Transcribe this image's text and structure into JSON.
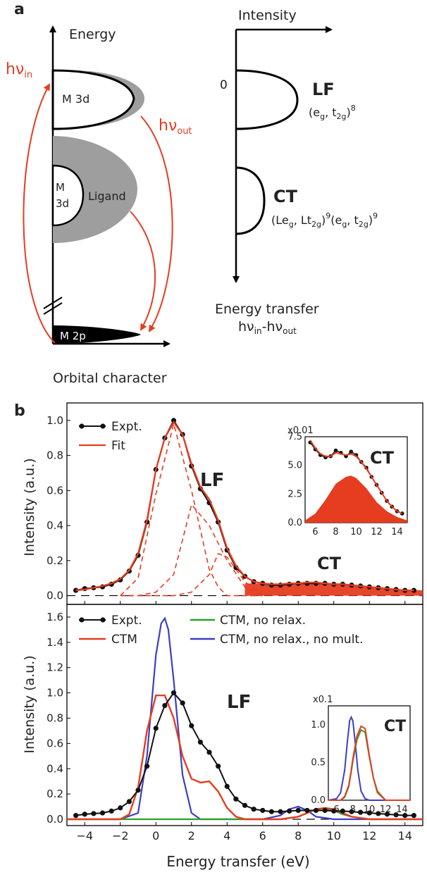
{
  "panel_a": {
    "label": "a",
    "energy_axis": "Energy",
    "orbital_axis": "Orbital character",
    "intensity_axis": "Intensity",
    "zero": "0",
    "m3d_top": "M 3d",
    "m3d_mid_1": "M",
    "m3d_mid_2": "3d",
    "ligand": "Ligand",
    "m2p": "M 2p",
    "hv_in_main": "hν",
    "hv_in_sub": "in",
    "hv_out_main": "hν",
    "hv_out_sub": "out",
    "lf": "LF",
    "lf_config": "(eg, t2g)8",
    "ct": "CT",
    "ct_config": "(Leg, Lt2g)9(eg, t2g)9",
    "transfer_title": "Energy transfer",
    "transfer_formula": "hνin-hνout",
    "colors": {
      "arrow": "#e63c20",
      "shade": "#9e9e9e",
      "core": "#000000"
    }
  },
  "chart_data": [
    {
      "type": "line",
      "panel": "b",
      "panel_label": "b",
      "xlabel": "Energy transfer (eV)",
      "ylabel": "Intensity (a.u.)",
      "xlim": [
        -5,
        15
      ],
      "ylim": [
        -0.05,
        1.1
      ],
      "yticks": [
        "0.0",
        "0.2",
        "0.4",
        "0.6",
        "0.8",
        "1.0"
      ],
      "annotations": [
        "LF",
        "CT"
      ],
      "legend": {
        "position": "top-left"
      },
      "series": [
        {
          "name": "Expt.",
          "color": "#111111",
          "marker": "circle",
          "x": [
            -4.5,
            -4,
            -3.5,
            -3,
            -2.5,
            -2,
            -1.5,
            -1,
            -0.5,
            0,
            0.5,
            1,
            1.5,
            2,
            2.5,
            3,
            3.5,
            4,
            4.5,
            5,
            5.5,
            6,
            6.5,
            7,
            7.5,
            8,
            8.5,
            9,
            9.5,
            10,
            10.5,
            11,
            11.5,
            12,
            12.5,
            13,
            13.5,
            14,
            14.5
          ],
          "y": [
            0.03,
            0.04,
            0.045,
            0.05,
            0.065,
            0.09,
            0.14,
            0.23,
            0.42,
            0.72,
            0.9,
            1.0,
            0.92,
            0.74,
            0.61,
            0.53,
            0.42,
            0.26,
            0.16,
            0.11,
            0.08,
            0.07,
            0.06,
            0.06,
            0.065,
            0.07,
            0.07,
            0.07,
            0.07,
            0.065,
            0.065,
            0.06,
            0.055,
            0.05,
            0.045,
            0.04,
            0.035,
            0.03,
            0.03
          ]
        },
        {
          "name": "Fit",
          "color": "#e63c20",
          "x": [
            -4.5,
            -4,
            -3.5,
            -3,
            -2.5,
            -2,
            -1.5,
            -1,
            -0.5,
            0,
            0.5,
            1,
            1.5,
            2,
            2.5,
            3,
            3.5,
            4,
            4.5,
            5,
            5.5,
            6,
            6.5,
            7,
            7.5,
            8,
            8.5,
            9,
            9.5,
            10,
            10.5,
            11,
            11.5,
            12,
            12.5,
            13,
            13.5,
            14,
            14.5
          ],
          "y": [
            0.03,
            0.035,
            0.045,
            0.055,
            0.07,
            0.095,
            0.145,
            0.24,
            0.43,
            0.72,
            0.9,
            0.99,
            0.92,
            0.75,
            0.62,
            0.55,
            0.43,
            0.27,
            0.17,
            0.11,
            0.08,
            0.07,
            0.065,
            0.065,
            0.07,
            0.07,
            0.075,
            0.075,
            0.07,
            0.065,
            0.065,
            0.06,
            0.055,
            0.05,
            0.045,
            0.04,
            0.035,
            0.03,
            0.03
          ]
        }
      ],
      "components": {
        "style": "dashed",
        "x": [
          -2,
          -1,
          0,
          1,
          2,
          3,
          3.5,
          4,
          5,
          6
        ],
        "peak_a": [
          0.0,
          0.1,
          0.58,
          0.98,
          0.6,
          0.15,
          0.05,
          0.0,
          0.0,
          0.0
        ],
        "peak_b": [
          0.0,
          0.0,
          0.02,
          0.12,
          0.52,
          0.4,
          0.3,
          0.2,
          0.05,
          0.0
        ],
        "peak_c": [
          0.0,
          0.0,
          0.0,
          0.0,
          0.02,
          0.12,
          0.24,
          0.22,
          0.08,
          0.0
        ]
      },
      "inset": {
        "scale_label": "x0.01",
        "title": "CT",
        "xlim": [
          5,
          15
        ],
        "ylim": [
          0,
          7.5
        ],
        "xticks": [
          "6",
          "8",
          "10",
          "12",
          "14"
        ],
        "yticks": [
          "0.0",
          "2.5",
          "5.0",
          "7.5"
        ],
        "expt_x": [
          5.5,
          6,
          6.5,
          7,
          7.5,
          8,
          8.5,
          9,
          9.5,
          10,
          10.5,
          11,
          11.5,
          12,
          12.5,
          13,
          13.5,
          14,
          14.5
        ],
        "expt_y": [
          7.0,
          6.4,
          5.9,
          5.7,
          5.8,
          6.3,
          6.1,
          5.8,
          6.2,
          5.9,
          5.3,
          4.8,
          4.0,
          3.3,
          2.6,
          1.9,
          1.4,
          1.0,
          0.8
        ],
        "fit_y": [
          7.2,
          6.5,
          6.0,
          5.8,
          5.8,
          6.1,
          6.0,
          5.9,
          6.0,
          5.8,
          5.3,
          4.7,
          4.0,
          3.3,
          2.6,
          1.9,
          1.4,
          1.0,
          0.8
        ],
        "filled_x": [
          5,
          6,
          7,
          8,
          9,
          9.5,
          10,
          11,
          12,
          13,
          14,
          15
        ],
        "filled_y": [
          0.2,
          0.8,
          2.0,
          3.4,
          4.0,
          4.1,
          3.9,
          3.0,
          1.8,
          1.0,
          0.5,
          0.2
        ]
      }
    },
    {
      "type": "line",
      "panel": "b-lower",
      "xlabel": "Energy transfer (eV)",
      "ylabel": "Intensity (a.u.)",
      "xlim": [
        -5,
        15
      ],
      "ylim": [
        -0.05,
        1.7
      ],
      "xticks": [
        "−4",
        "−2",
        "0",
        "2",
        "4",
        "6",
        "8",
        "10",
        "12",
        "14"
      ],
      "yticks": [
        "0.0",
        "0.2",
        "0.4",
        "0.6",
        "0.8",
        "1.0",
        "1.2",
        "1.4",
        "1.6"
      ],
      "annotations": [
        "LF",
        "CT"
      ],
      "legend": {
        "position": "top"
      },
      "series": [
        {
          "name": "Expt.",
          "color": "#111111",
          "marker": "circle",
          "x": [
            -4.5,
            -4,
            -3.5,
            -3,
            -2.5,
            -2,
            -1.5,
            -1,
            -0.5,
            0,
            0.5,
            1,
            1.5,
            2,
            2.5,
            3,
            3.5,
            4,
            4.5,
            5,
            5.5,
            6,
            6.5,
            7,
            7.5,
            8,
            8.5,
            9,
            9.5,
            10,
            10.5,
            11,
            11.5,
            12,
            12.5,
            13,
            13.5,
            14,
            14.5
          ],
          "y": [
            0.03,
            0.04,
            0.045,
            0.05,
            0.065,
            0.09,
            0.14,
            0.23,
            0.42,
            0.72,
            0.9,
            1.0,
            0.92,
            0.74,
            0.61,
            0.53,
            0.42,
            0.26,
            0.16,
            0.11,
            0.08,
            0.07,
            0.06,
            0.06,
            0.065,
            0.07,
            0.07,
            0.07,
            0.07,
            0.065,
            0.065,
            0.06,
            0.055,
            0.05,
            0.045,
            0.04,
            0.035,
            0.03,
            0.03
          ]
        },
        {
          "name": "CTM",
          "color": "#e63c20",
          "x": [
            -5,
            -2,
            -1.5,
            -1,
            -0.5,
            0,
            0.5,
            1,
            1.5,
            2,
            2.5,
            3,
            3.5,
            4,
            4.5,
            5,
            6,
            7,
            8,
            8.5,
            9,
            9.5,
            10,
            10.5,
            11,
            12,
            15
          ],
          "y": [
            0.0,
            0.0,
            0.04,
            0.25,
            0.7,
            0.98,
            0.98,
            0.8,
            0.5,
            0.32,
            0.29,
            0.3,
            0.22,
            0.09,
            0.02,
            0.0,
            0.0,
            0.0,
            0.02,
            0.05,
            0.08,
            0.09,
            0.08,
            0.05,
            0.02,
            0.0,
            0.0
          ]
        },
        {
          "name": "CTM, no relax.",
          "color": "#2ca02c",
          "x": [
            -5,
            7,
            8,
            8.5,
            9,
            9.5,
            10,
            10.5,
            11,
            12,
            15
          ],
          "y": [
            0.0,
            0.0,
            0.02,
            0.05,
            0.08,
            0.085,
            0.07,
            0.04,
            0.02,
            0.0,
            0.0
          ]
        },
        {
          "name": "CTM, no relax., no mult.",
          "color": "#3b3fc4",
          "x": [
            -5,
            -2,
            -1,
            -0.5,
            0,
            0.3,
            0.5,
            0.7,
            1,
            1.5,
            2,
            2.5,
            3,
            5,
            6,
            7,
            7.5,
            8,
            8.5,
            9,
            10,
            15
          ],
          "y": [
            0.0,
            0.0,
            0.05,
            0.5,
            1.3,
            1.55,
            1.59,
            1.5,
            1.1,
            0.35,
            0.05,
            0.0,
            0.0,
            0.0,
            0.0,
            0.03,
            0.08,
            0.1,
            0.07,
            0.02,
            0.0,
            0.0
          ]
        }
      ],
      "inset": {
        "scale_label": "x0.1",
        "title": "CT",
        "xlim": [
          5,
          15
        ],
        "ylim": [
          0,
          1.25
        ],
        "xticks": [
          "6",
          "8",
          "10",
          "12",
          "14"
        ],
        "yticks": [
          "0.0",
          "0.5",
          "1.0"
        ],
        "x": [
          5,
          6,
          6.5,
          7,
          7.5,
          7.8,
          8,
          8.5,
          9,
          9.5,
          10,
          10.5,
          11,
          12,
          13,
          15
        ],
        "ctm_y": [
          0.0,
          0.0,
          0.0,
          0.05,
          0.2,
          0.4,
          0.55,
          0.85,
          0.98,
          0.95,
          0.6,
          0.3,
          0.1,
          0.0,
          0.0,
          0.0
        ],
        "no_relax_y": [
          0.0,
          0.0,
          0.0,
          0.04,
          0.18,
          0.38,
          0.52,
          0.8,
          0.93,
          0.9,
          0.58,
          0.3,
          0.12,
          0.0,
          0.0,
          0.0
        ],
        "no_mult_x": [
          5,
          6,
          6.5,
          7,
          7.3,
          7.6,
          7.8,
          8,
          8.3,
          8.6,
          9,
          9.5,
          10,
          15
        ],
        "no_mult_y": [
          0.0,
          0.02,
          0.1,
          0.4,
          0.75,
          1.05,
          1.1,
          1.05,
          0.75,
          0.4,
          0.12,
          0.02,
          0.0,
          0.0
        ]
      }
    }
  ]
}
